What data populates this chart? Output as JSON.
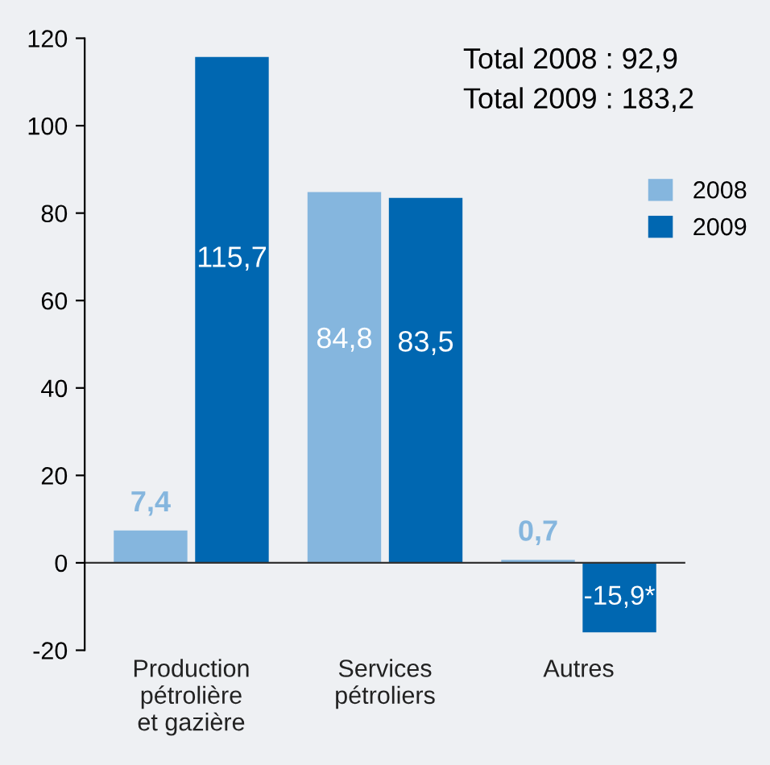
{
  "chart_data": {
    "type": "bar",
    "categories": [
      "Production\npétrolière\net gazière",
      "Services\npétroliers",
      "Autres"
    ],
    "series": [
      {
        "name": "2008",
        "color": "#85b6de",
        "values": [
          7.4,
          84.8,
          0.7
        ],
        "value_labels": [
          "7,4",
          "84,8",
          "0,7"
        ]
      },
      {
        "name": "2009",
        "color": "#0067b1",
        "values": [
          115.7,
          83.5,
          -15.9
        ],
        "value_labels": [
          "115,7",
          "83,5",
          "-15,9*"
        ]
      }
    ],
    "ylim": [
      -20,
      120
    ],
    "yticks": [
      -20,
      0,
      20,
      40,
      60,
      80,
      100,
      120
    ],
    "annotations": [
      "Total 2008 : 92,9",
      "Total 2009 : 183,2"
    ],
    "legend": "right"
  }
}
